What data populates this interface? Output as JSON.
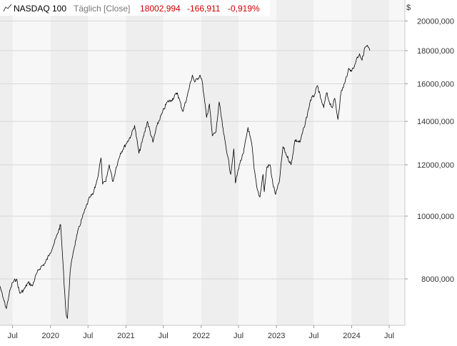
{
  "header": {
    "instrument": "NASDAQ 100",
    "mode": "Täglich [Close]",
    "last": "18002,994",
    "change": "-166,911",
    "change_pct": "-0,919%",
    "currency_label": "$"
  },
  "colors": {
    "background": "#ffffff",
    "band_light": "#f7f7f7",
    "band_dark": "#eeeeee",
    "grid": "#d7d7d7",
    "line": "#000000",
    "negative": "#cc0000",
    "header_gray": "#777777",
    "axis_text": "#333333"
  },
  "chart_data": {
    "type": "line",
    "title": "NASDAQ 100",
    "y_scale": "log",
    "ylim": [
      7000,
      21000
    ],
    "grid": true,
    "y_ticks": [
      8000,
      10000,
      12000,
      14000,
      16000,
      18000,
      20000
    ],
    "y_tick_labels": [
      "8000,000",
      "10000,000",
      "12000,000",
      "14000,000",
      "16000,000",
      "18000,000",
      "20000,000"
    ],
    "x_range": [
      "2019-05-01",
      "2024-09-15"
    ],
    "x_ticks": [
      {
        "date": "2019-07-01",
        "label": "Jul"
      },
      {
        "date": "2020-01-01",
        "label": "2020"
      },
      {
        "date": "2020-07-01",
        "label": "Jul"
      },
      {
        "date": "2021-01-01",
        "label": "2021"
      },
      {
        "date": "2021-07-01",
        "label": "Jul"
      },
      {
        "date": "2022-01-01",
        "label": "2022"
      },
      {
        "date": "2022-07-01",
        "label": "Jul"
      },
      {
        "date": "2023-01-01",
        "label": "2023"
      },
      {
        "date": "2023-07-01",
        "label": "Jul"
      },
      {
        "date": "2024-01-01",
        "label": "2024"
      },
      {
        "date": "2024-07-01",
        "label": "Jul"
      }
    ],
    "series": [
      {
        "name": "NASDAQ 100",
        "x": [
          "2019-05-01",
          "2019-05-15",
          "2019-06-01",
          "2019-06-15",
          "2019-07-01",
          "2019-07-20",
          "2019-08-05",
          "2019-08-25",
          "2019-09-15",
          "2019-10-05",
          "2019-10-25",
          "2019-11-15",
          "2019-12-05",
          "2019-12-28",
          "2020-01-20",
          "2020-02-19",
          "2020-03-01",
          "2020-03-10",
          "2020-03-16",
          "2020-03-23",
          "2020-04-05",
          "2020-04-20",
          "2020-05-10",
          "2020-06-01",
          "2020-06-20",
          "2020-07-10",
          "2020-07-25",
          "2020-08-15",
          "2020-09-02",
          "2020-09-10",
          "2020-09-25",
          "2020-10-12",
          "2020-10-30",
          "2020-11-15",
          "2020-12-05",
          "2020-12-31",
          "2021-01-25",
          "2021-02-12",
          "2021-03-05",
          "2021-03-20",
          "2021-04-15",
          "2021-05-12",
          "2021-06-01",
          "2021-06-25",
          "2021-07-20",
          "2021-08-10",
          "2021-09-07",
          "2021-10-04",
          "2021-10-25",
          "2021-11-19",
          "2021-12-01",
          "2021-12-27",
          "2022-01-05",
          "2022-01-27",
          "2022-02-10",
          "2022-02-24",
          "2022-03-14",
          "2022-03-29",
          "2022-04-20",
          "2022-05-09",
          "2022-05-24",
          "2022-06-08",
          "2022-06-16",
          "2022-07-05",
          "2022-07-25",
          "2022-08-16",
          "2022-09-05",
          "2022-09-15",
          "2022-09-30",
          "2022-10-13",
          "2022-10-28",
          "2022-11-03",
          "2022-11-15",
          "2022-12-01",
          "2022-12-15",
          "2022-12-28",
          "2023-01-15",
          "2023-02-02",
          "2023-02-20",
          "2023-03-13",
          "2023-04-01",
          "2023-04-25",
          "2023-05-15",
          "2023-06-01",
          "2023-06-15",
          "2023-07-05",
          "2023-07-19",
          "2023-08-03",
          "2023-08-18",
          "2023-09-01",
          "2023-09-15",
          "2023-09-29",
          "2023-10-11",
          "2023-10-26",
          "2023-11-10",
          "2023-11-30",
          "2023-12-15",
          "2023-12-28",
          "2024-01-10",
          "2024-01-25",
          "2024-02-08",
          "2024-02-20",
          "2024-03-05",
          "2024-03-15",
          "2024-03-22",
          "2024-03-29"
        ],
        "values": [
          7800,
          7500,
          7200,
          7600,
          7900,
          8000,
          7600,
          7700,
          7900,
          7800,
          8150,
          8350,
          8450,
          8750,
          9100,
          9700,
          8500,
          7600,
          7100,
          6950,
          8200,
          8800,
          9400,
          9900,
          10300,
          10700,
          10800,
          11400,
          12300,
          11200,
          11300,
          12000,
          11300,
          11900,
          12500,
          12900,
          13300,
          13800,
          12500,
          13000,
          14000,
          13000,
          13800,
          14400,
          15000,
          15100,
          15500,
          14500,
          15300,
          16500,
          16100,
          16500,
          16200,
          14200,
          14900,
          13300,
          13500,
          15000,
          13400,
          12400,
          11600,
          12700,
          11250,
          12000,
          12500,
          13700,
          12800,
          11800,
          11000,
          10700,
          11600,
          10900,
          11900,
          12000,
          11200,
          10800,
          11300,
          12800,
          12400,
          12000,
          13100,
          13000,
          13700,
          14400,
          15100,
          15400,
          15900,
          15200,
          14700,
          15500,
          15000,
          14700,
          15200,
          14100,
          15500,
          16100,
          16800,
          16800,
          16900,
          17500,
          17800,
          17400,
          18200,
          18300,
          18200,
          18003
        ]
      }
    ]
  }
}
